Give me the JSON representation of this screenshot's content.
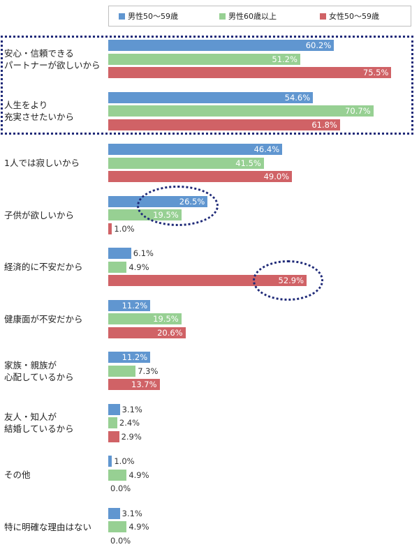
{
  "chart_data": {
    "type": "bar",
    "orientation": "horizontal",
    "xlim": [
      0,
      100
    ],
    "grid": false,
    "legend_position": "top",
    "categories": [
      "安心・信頼できる\nパートナーが欲しいから",
      "人生をより\n充実させたいから",
      "1人では寂しいから",
      "子供が欲しいから",
      "経済的に不安だから",
      "健康面が不安だから",
      "家族・親族が\n心配しているから",
      "友人・知人が\n結婚しているから",
      "その他",
      "特に明確な理由はない"
    ],
    "series": [
      {
        "name": "男性50〜59歳",
        "color": "#6096d0",
        "values": [
          60.2,
          54.6,
          46.4,
          26.5,
          6.1,
          11.2,
          11.2,
          3.1,
          1.0,
          3.1
        ]
      },
      {
        "name": "男性60歳以上",
        "color": "#97d093",
        "values": [
          51.2,
          70.7,
          41.5,
          19.5,
          4.9,
          19.5,
          7.3,
          2.4,
          4.9,
          4.9
        ]
      },
      {
        "name": "女性50〜59歳",
        "color": "#d06266",
        "values": [
          75.5,
          61.8,
          49.0,
          1.0,
          52.9,
          20.6,
          13.7,
          2.9,
          0.0,
          0.0
        ]
      }
    ],
    "value_labels": [
      [
        "60.2%",
        "51.2%",
        "75.5%"
      ],
      [
        "54.6%",
        "70.7%",
        "61.8%"
      ],
      [
        "46.4%",
        "41.5%",
        "49.0%"
      ],
      [
        "26.5%",
        "19.5%",
        "1.0%"
      ],
      [
        "6.1%",
        "4.9%",
        "52.9%"
      ],
      [
        "11.2%",
        "19.5%",
        "20.6%"
      ],
      [
        "11.2%",
        "7.3%",
        "13.7%"
      ],
      [
        "3.1%",
        "2.4%",
        "2.9%"
      ],
      [
        "1.0%",
        "4.9%",
        "0.0%"
      ],
      [
        "3.1%",
        "4.9%",
        "0.0%"
      ]
    ]
  }
}
